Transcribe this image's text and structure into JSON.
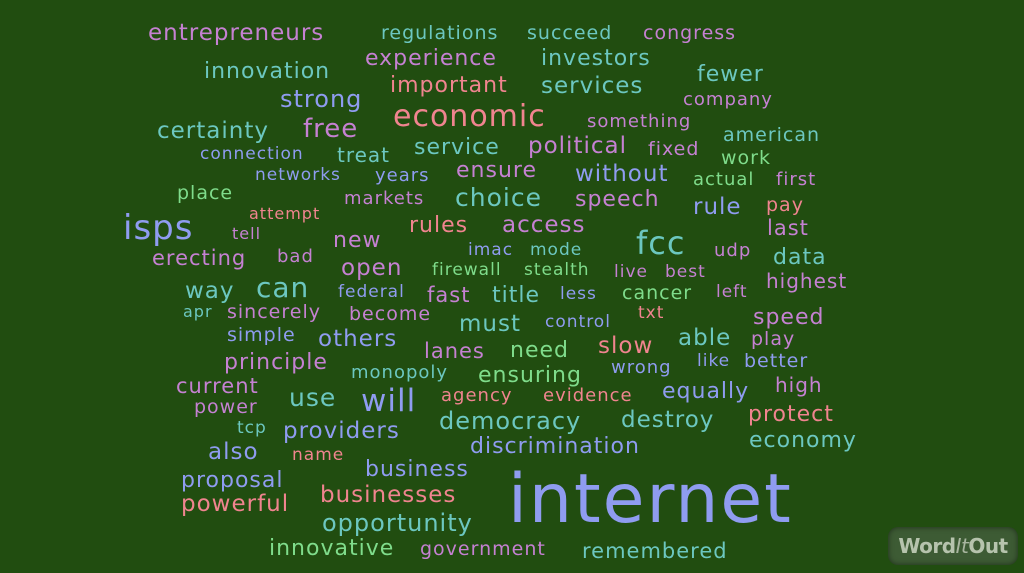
{
  "words": {
    "entrepreneurs": "entrepreneurs",
    "regulations": "regulations",
    "succeed": "succeed",
    "congress": "congress",
    "experience": "experience",
    "investors": "investors",
    "innovation": "innovation",
    "fewer": "fewer",
    "important": "important",
    "services": "services",
    "strong": "strong",
    "company": "company",
    "economic": "economic",
    "something": "something",
    "certainty": "certainty",
    "free": "free",
    "american": "american",
    "connection": "connection",
    "treat": "treat",
    "service": "service",
    "political": "political",
    "fixed": "fixed",
    "work": "work",
    "networks": "networks",
    "years": "years",
    "ensure": "ensure",
    "without": "without",
    "actual": "actual",
    "first": "first",
    "place": "place",
    "markets": "markets",
    "choice": "choice",
    "speech": "speech",
    "attempt": "attempt",
    "rule": "rule",
    "pay": "pay",
    "isps": "isps",
    "rules": "rules",
    "access": "access",
    "tell": "tell",
    "new": "new",
    "fcc": "fcc",
    "last": "last",
    "bad": "bad",
    "imac": "imac",
    "mode": "mode",
    "udp": "udp",
    "erecting": "erecting",
    "data": "data",
    "open": "open",
    "firewall": "firewall",
    "stealth": "stealth",
    "live": "live",
    "best": "best",
    "highest": "highest",
    "way": "way",
    "can": "can",
    "federal": "federal",
    "fast": "fast",
    "title": "title",
    "less": "less",
    "cancer": "cancer",
    "left": "left",
    "apr": "apr",
    "sincerely": "sincerely",
    "become": "become",
    "txt": "txt",
    "speed": "speed",
    "must": "must",
    "control": "control",
    "simple": "simple",
    "others": "others",
    "able": "able",
    "play": "play",
    "lanes": "lanes",
    "need": "need",
    "slow": "slow",
    "principle": "principle",
    "like": "like",
    "better": "better",
    "monopoly": "monopoly",
    "wrong": "wrong",
    "ensuring": "ensuring",
    "current": "current",
    "high": "high",
    "use": "use",
    "agency": "agency",
    "evidence": "evidence",
    "equally": "equally",
    "power": "power",
    "will": "will",
    "protect": "protect",
    "democracy": "democracy",
    "destroy": "destroy",
    "tcp": "tcp",
    "providers": "providers",
    "economy": "economy",
    "also": "also",
    "discrimination": "discrimination",
    "name": "name",
    "business": "business",
    "proposal": "proposal",
    "internet": "internet",
    "businesses": "businesses",
    "powerful": "powerful",
    "opportunity": "opportunity",
    "innovative": "innovative",
    "government": "government",
    "remembered": "remembered"
  },
  "logo": {
    "word": "Word",
    "it": "It",
    "out": "Out"
  },
  "colors": {
    "background": "#214d10",
    "purple": "#c581d2",
    "teal": "#6cc7c0",
    "salmon": "#f0848f",
    "blue": "#8f9cf0",
    "green": "#7fdc8b"
  }
}
